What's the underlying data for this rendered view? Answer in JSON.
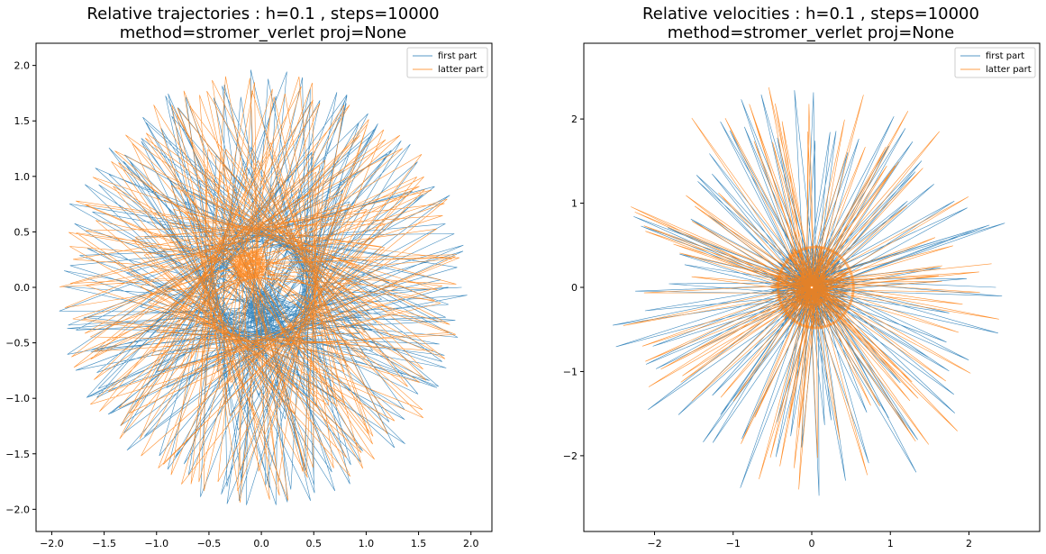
{
  "chart_data": [
    {
      "type": "line",
      "title_line1": "Relative trajectories : h=0.1 , steps=10000",
      "title_line2": "method=stromer_verlet  proj=None",
      "xlim": [
        -2.15,
        2.2
      ],
      "ylim": [
        -2.2,
        2.2
      ],
      "xticks": [
        -2.0,
        -1.5,
        -1.0,
        -0.5,
        0.0,
        0.5,
        1.0,
        1.5,
        2.0
      ],
      "yticks": [
        -2.0,
        -1.5,
        -1.0,
        -0.5,
        0.0,
        0.5,
        1.0,
        1.5,
        2.0
      ],
      "xtick_labels": [
        "−2.0",
        "−1.5",
        "−1.0",
        "−0.5",
        "0.0",
        "0.5",
        "1.0",
        "1.5",
        "2.0"
      ],
      "ytick_labels": [
        "−2.0",
        "−1.5",
        "−1.0",
        "−0.5",
        "0.0",
        "0.5",
        "1.0",
        "1.5",
        "2.0"
      ],
      "legend_placement": "top-right",
      "series": [
        {
          "name": "first part",
          "color": "#1f77b4",
          "pattern": {
            "r_outer": 1.98,
            "r_mid": 1.2,
            "r_inner": 0.28,
            "center": [
              0.02,
              -0.22
            ],
            "step_deg": 143.3,
            "count": 260,
            "phase": 0
          }
        },
        {
          "name": "latter part",
          "color": "#ff7f0e",
          "pattern": {
            "r_outer": 1.95,
            "r_mid": 1.25,
            "r_inner": 0.2,
            "center": [
              -0.12,
              0.2
            ],
            "step_deg": 137.9,
            "count": 260,
            "phase": 9
          }
        }
      ]
    },
    {
      "type": "line",
      "title_line1": "Relative velocities : h=0.1 , steps=10000",
      "title_line2": "method=stromer_verlet  proj=None",
      "xlim": [
        -2.9,
        2.9
      ],
      "ylim": [
        -2.9,
        2.9
      ],
      "xticks": [
        -2,
        -1,
        0,
        1,
        2
      ],
      "yticks": [
        -2,
        -1,
        0,
        1,
        2
      ],
      "xtick_labels": [
        "−2",
        "−1",
        "0",
        "1",
        "2"
      ],
      "ytick_labels": [
        "−2",
        "−1",
        "0",
        "1",
        "2"
      ],
      "legend_placement": "top-right",
      "series": [
        {
          "name": "first part",
          "color": "#1f77b4",
          "pattern": {
            "r_outer": 2.6,
            "r_ring": 0.5,
            "r_inner": 0.25,
            "step_deg": 167.4,
            "count": 240,
            "phase": 0
          }
        },
        {
          "name": "latter part",
          "color": "#ff7f0e",
          "pattern": {
            "r_outer": 2.55,
            "r_ring": 0.5,
            "r_inner": 0.22,
            "step_deg": 171.1,
            "count": 240,
            "phase": 7
          }
        }
      ]
    }
  ]
}
